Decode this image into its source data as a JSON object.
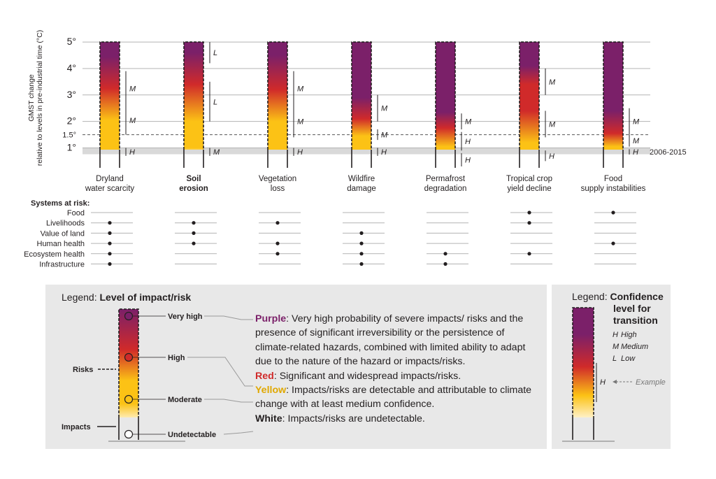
{
  "chart_data": {
    "type": "heatmap",
    "ylabel_line1": "GMST change",
    "ylabel_line2": "relative to levels in pre-industrial time (°C)",
    "y_ticks": [
      {
        "value": 1,
        "label": "1°"
      },
      {
        "value": 1.5,
        "label": "1.5°"
      },
      {
        "value": 2,
        "label": "2°"
      },
      {
        "value": 3,
        "label": "3°"
      },
      {
        "value": 4,
        "label": "4°"
      },
      {
        "value": 5,
        "label": "5°"
      }
    ],
    "ylim": [
      0.25,
      5
    ],
    "baseline_band": {
      "label": "2006-2015",
      "range": [
        0.76,
        1.01
      ]
    },
    "dashed_line_value": 1.5,
    "risks": [
      {
        "line1": "Dryland",
        "line2": "water scarcity",
        "bold": false,
        "transitions": [
          {
            "from": 0.7,
            "to": 1.0,
            "c": "H"
          },
          {
            "from": 1.5,
            "to": 2.6,
            "c": "M"
          },
          {
            "from": 2.6,
            "to": 3.9,
            "c": "M"
          }
        ],
        "stops": [
          {
            "t": 0.7,
            "c": "white"
          },
          {
            "t": 0.85,
            "c": "yellow"
          },
          {
            "t": 2.05,
            "c": "yellow"
          },
          {
            "t": 3.25,
            "c": "red"
          },
          {
            "t": 4.45,
            "c": "purple"
          }
        ]
      },
      {
        "line1": "Soil",
        "line2": "erosion",
        "bold": true,
        "transitions": [
          {
            "from": 0.7,
            "to": 1.0,
            "c": "M"
          },
          {
            "from": 2.0,
            "to": 3.5,
            "c": "L"
          },
          {
            "from": 4.2,
            "to": 5.0,
            "c": "L"
          }
        ],
        "stops": [
          {
            "t": 0.7,
            "c": "white"
          },
          {
            "t": 1.0,
            "c": "yellow"
          },
          {
            "t": 2.0,
            "c": "yellow"
          },
          {
            "t": 3.4,
            "c": "red"
          },
          {
            "t": 4.6,
            "c": "purple"
          }
        ]
      },
      {
        "line1": "Vegetation",
        "line2": "loss",
        "bold": false,
        "transitions": [
          {
            "from": 0.7,
            "to": 1.0,
            "c": "H"
          },
          {
            "from": 1.4,
            "to": 2.6,
            "c": "M"
          },
          {
            "from": 2.6,
            "to": 3.9,
            "c": "M"
          }
        ],
        "stops": [
          {
            "t": 0.7,
            "c": "white"
          },
          {
            "t": 0.85,
            "c": "yellow"
          },
          {
            "t": 2.0,
            "c": "yellow"
          },
          {
            "t": 3.2,
            "c": "red"
          },
          {
            "t": 4.5,
            "c": "purple"
          }
        ]
      },
      {
        "line1": "Wildfire",
        "line2": "damage",
        "bold": false,
        "transitions": [
          {
            "from": 0.7,
            "to": 1.0,
            "c": "H"
          },
          {
            "from": 1.3,
            "to": 1.7,
            "c": "M"
          },
          {
            "from": 2.0,
            "to": 3.0,
            "c": "M"
          }
        ],
        "stops": [
          {
            "t": 0.7,
            "c": "white"
          },
          {
            "t": 0.85,
            "c": "yellow"
          },
          {
            "t": 1.45,
            "c": "yellow"
          },
          {
            "t": 2.1,
            "c": "red"
          },
          {
            "t": 2.9,
            "c": "purple"
          }
        ]
      },
      {
        "line1": "Permafrost",
        "line2": "degradation",
        "bold": false,
        "transitions": [
          {
            "from": 0.3,
            "to": 0.8,
            "c": "H"
          },
          {
            "from": 0.9,
            "to": 1.6,
            "c": "H"
          },
          {
            "from": 1.7,
            "to": 2.3,
            "c": "M"
          }
        ],
        "stops": [
          {
            "t": 0.3,
            "c": "white"
          },
          {
            "t": 0.6,
            "c": "yellow"
          },
          {
            "t": 1.05,
            "c": "yellow"
          },
          {
            "t": 1.75,
            "c": "red"
          },
          {
            "t": 2.35,
            "c": "purple"
          }
        ]
      },
      {
        "line1": "Tropical crop",
        "line2": "yield decline",
        "bold": false,
        "transitions": [
          {
            "from": 0.5,
            "to": 0.9,
            "c": "H"
          },
          {
            "from": 1.4,
            "to": 2.4,
            "c": "M"
          },
          {
            "from": 3.0,
            "to": 4.0,
            "c": "M"
          }
        ],
        "stops": [
          {
            "t": 0.5,
            "c": "white"
          },
          {
            "t": 0.7,
            "c": "yellow"
          },
          {
            "t": 1.2,
            "c": "yellow"
          },
          {
            "t": 2.4,
            "c": "red"
          },
          {
            "t": 3.4,
            "c": "red"
          },
          {
            "t": 4.1,
            "c": "purple"
          }
        ]
      },
      {
        "line1": "Food",
        "line2": "supply instabilities",
        "bold": false,
        "transitions": [
          {
            "from": 0.75,
            "to": 0.95,
            "c": "H"
          },
          {
            "from": 1.05,
            "to": 1.5,
            "c": "M"
          },
          {
            "from": 1.5,
            "to": 2.5,
            "c": "M"
          }
        ],
        "stops": [
          {
            "t": 0.7,
            "c": "white"
          },
          {
            "t": 0.8,
            "c": "yellow"
          },
          {
            "t": 1.05,
            "c": "yellow"
          },
          {
            "t": 1.55,
            "c": "red"
          },
          {
            "t": 2.4,
            "c": "purple"
          }
        ]
      }
    ],
    "systems_title": "Systems at risk:",
    "systems": [
      "Food",
      "Livelihoods",
      "Value of land",
      "Human health",
      "Ecosystem health",
      "Infrastructure"
    ],
    "systems_matrix": [
      [
        0,
        1,
        1,
        1,
        1,
        1
      ],
      [
        0,
        1,
        1,
        1,
        0,
        0
      ],
      [
        0,
        1,
        0,
        1,
        1,
        0
      ],
      [
        0,
        0,
        1,
        1,
        1,
        1
      ],
      [
        0,
        0,
        0,
        0,
        1,
        1
      ],
      [
        1,
        1,
        0,
        0,
        1,
        0
      ],
      [
        1,
        0,
        0,
        1,
        0,
        0
      ]
    ]
  },
  "colors": {
    "purple": "#7b2069",
    "red": "#d02a2a",
    "yellow": "#fcc215",
    "white": "#ffffff",
    "grid": "#b3b3b3",
    "band": "#d9d9d9",
    "legend_bg": "#e8e8e8"
  },
  "legend_impact": {
    "prefix": "Legend: ",
    "title": "Level of impact/risk",
    "levels": [
      "Very high",
      "High",
      "Moderate",
      "Undetectable"
    ],
    "risks_label": "Risks",
    "impacts_label": "Impacts"
  },
  "descriptions": {
    "purple_key": "Purple",
    "purple_text": ": Very high probability of severe impacts/ risks and the presence of significant irreversibility or the persistence of climate-related hazards, combined with limited ability to adapt due to the nature of the hazard or impacts/risks.",
    "red_key": "Red",
    "red_text": ": Significant and widespread impacts/risks.",
    "yellow_key": "Yellow",
    "yellow_text": ": Impacts/risks are detectable and attributable to climate change with at least medium confidence.",
    "white_key": "White",
    "white_text": ": Impacts/risks are undetectable."
  },
  "legend_confidence": {
    "prefix": "Legend: ",
    "title_line1": "Confidence",
    "title_line2": "level for",
    "title_line3": "transition",
    "items": [
      {
        "key": "H",
        "label": "High"
      },
      {
        "key": "M",
        "label": "Medium"
      },
      {
        "key": "L",
        "label": "Low"
      }
    ],
    "example_key": "H",
    "example_label": "Example"
  }
}
